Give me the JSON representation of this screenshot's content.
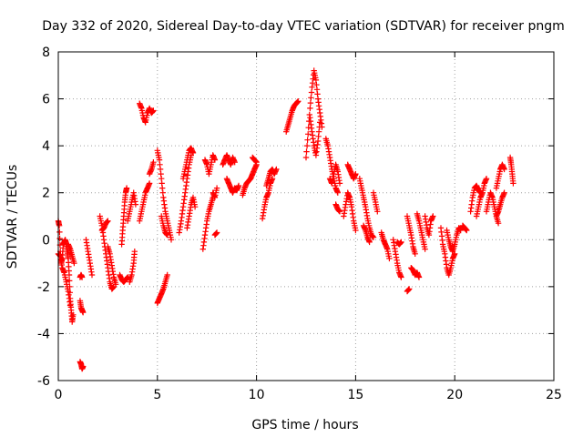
{
  "chart_data": {
    "type": "scatter",
    "title": "Day 332 of 2020, Sidereal Day-to-day VTEC variation (SDTVAR) for receiver pngm",
    "xlabel": "GPS time / hours",
    "ylabel": "SDTVAR / TECUs",
    "xlim": [
      0,
      25
    ],
    "ylim": [
      -6,
      8
    ],
    "xticks": [
      0,
      5,
      10,
      15,
      20,
      25
    ],
    "yticks": [
      -6,
      -4,
      -2,
      0,
      2,
      4,
      6,
      8
    ],
    "grid": true,
    "marker": "+",
    "color": "#ff0000",
    "segments": [
      [
        [
          0.0,
          0.8
        ],
        [
          0.05,
          0.6
        ],
        [
          0.1,
          -0.5
        ],
        [
          0.15,
          -1.0
        ],
        [
          0.2,
          -0.8
        ],
        [
          0.25,
          -0.2
        ],
        [
          0.3,
          -0.1
        ],
        [
          0.35,
          0.0
        ],
        [
          0.4,
          -0.2
        ],
        [
          0.45,
          -0.5
        ],
        [
          0.5,
          -0.8
        ],
        [
          0.55,
          -1.5
        ],
        [
          0.6,
          -2.5
        ],
        [
          0.65,
          -3.0
        ],
        [
          0.7,
          -3.5
        ],
        [
          0.75,
          -3.2
        ]
      ],
      [
        [
          0.0,
          -0.6
        ],
        [
          0.1,
          -0.7
        ],
        [
          0.2,
          -1.2
        ],
        [
          0.3,
          -1.4
        ],
        [
          0.4,
          -1.8
        ],
        [
          0.5,
          -2.2
        ],
        [
          0.6,
          -2.8
        ]
      ],
      [
        [
          0.5,
          -0.2
        ],
        [
          0.6,
          -0.4
        ],
        [
          0.7,
          -0.7
        ],
        [
          0.8,
          -1.0
        ]
      ],
      [
        [
          1.1,
          -1.6
        ],
        [
          1.15,
          -1.5
        ],
        [
          1.2,
          -1.6
        ]
      ],
      [
        [
          1.1,
          -2.6
        ],
        [
          1.15,
          -2.9
        ],
        [
          1.2,
          -3.0
        ],
        [
          1.25,
          -3.1
        ]
      ],
      [
        [
          1.1,
          -5.2
        ],
        [
          1.15,
          -5.3
        ],
        [
          1.2,
          -5.5
        ],
        [
          1.25,
          -5.4
        ]
      ],
      [
        [
          1.4,
          0.0
        ],
        [
          1.5,
          -0.5
        ],
        [
          1.6,
          -1.0
        ],
        [
          1.7,
          -1.5
        ]
      ],
      [
        [
          2.1,
          1.0
        ],
        [
          2.2,
          0.6
        ],
        [
          2.3,
          0.0
        ],
        [
          2.4,
          -0.6
        ],
        [
          2.5,
          -1.2
        ],
        [
          2.6,
          -1.8
        ],
        [
          2.7,
          -2.1
        ],
        [
          2.8,
          -2.0
        ]
      ],
      [
        [
          2.2,
          0.4
        ],
        [
          2.3,
          0.5
        ],
        [
          2.4,
          0.7
        ],
        [
          2.5,
          0.8
        ]
      ],
      [
        [
          2.5,
          -0.3
        ],
        [
          2.6,
          -0.6
        ],
        [
          2.7,
          -1.1
        ],
        [
          2.8,
          -1.6
        ],
        [
          2.9,
          -1.9
        ]
      ],
      [
        [
          3.1,
          -1.5
        ],
        [
          3.2,
          -1.7
        ],
        [
          3.3,
          -1.8
        ],
        [
          3.4,
          -1.7
        ],
        [
          3.5,
          -1.6
        ]
      ],
      [
        [
          3.2,
          -0.2
        ],
        [
          3.25,
          0.4
        ],
        [
          3.3,
          1.0
        ],
        [
          3.35,
          1.6
        ],
        [
          3.4,
          2.0
        ],
        [
          3.45,
          2.2
        ]
      ],
      [
        [
          3.5,
          0.8
        ],
        [
          3.6,
          1.2
        ],
        [
          3.7,
          1.6
        ],
        [
          3.8,
          2.0
        ],
        [
          3.9,
          1.5
        ]
      ],
      [
        [
          3.6,
          -1.8
        ],
        [
          3.7,
          -1.5
        ],
        [
          3.8,
          -1.0
        ],
        [
          3.85,
          -0.5
        ]
      ],
      [
        [
          4.1,
          0.8
        ],
        [
          4.2,
          1.2
        ],
        [
          4.3,
          1.6
        ],
        [
          4.4,
          2.0
        ],
        [
          4.5,
          2.2
        ],
        [
          4.6,
          2.4
        ]
      ],
      [
        [
          4.1,
          5.8
        ],
        [
          4.2,
          5.6
        ],
        [
          4.3,
          5.2
        ],
        [
          4.4,
          5.0
        ],
        [
          4.5,
          5.4
        ],
        [
          4.6,
          5.6
        ],
        [
          4.7,
          5.4
        ],
        [
          4.8,
          5.5
        ]
      ],
      [
        [
          4.6,
          2.8
        ],
        [
          4.7,
          3.0
        ],
        [
          4.8,
          3.3
        ]
      ],
      [
        [
          5.0,
          3.8
        ],
        [
          5.1,
          3.4
        ],
        [
          5.2,
          2.6
        ],
        [
          5.3,
          1.8
        ],
        [
          5.4,
          1.2
        ],
        [
          5.5,
          0.8
        ],
        [
          5.6,
          0.4
        ],
        [
          5.7,
          0.0
        ]
      ],
      [
        [
          5.2,
          1.0
        ],
        [
          5.3,
          0.6
        ],
        [
          5.4,
          0.3
        ],
        [
          5.5,
          0.2
        ]
      ],
      [
        [
          5.0,
          -2.7
        ],
        [
          5.1,
          -2.5
        ],
        [
          5.2,
          -2.3
        ],
        [
          5.3,
          -2.1
        ],
        [
          5.4,
          -1.8
        ],
        [
          5.5,
          -1.5
        ]
      ],
      [
        [
          6.1,
          0.3
        ],
        [
          6.2,
          0.8
        ],
        [
          6.3,
          1.4
        ],
        [
          6.4,
          2.0
        ],
        [
          6.5,
          2.6
        ],
        [
          6.6,
          3.2
        ],
        [
          6.7,
          3.6
        ]
      ],
      [
        [
          6.3,
          2.6
        ],
        [
          6.4,
          3.0
        ],
        [
          6.5,
          3.4
        ],
        [
          6.6,
          3.8
        ],
        [
          6.7,
          3.9
        ],
        [
          6.8,
          3.7
        ]
      ],
      [
        [
          6.5,
          0.5
        ],
        [
          6.6,
          1.0
        ],
        [
          6.7,
          1.5
        ],
        [
          6.8,
          1.8
        ],
        [
          6.9,
          1.4
        ]
      ],
      [
        [
          7.3,
          -0.4
        ],
        [
          7.4,
          0.2
        ],
        [
          7.5,
          0.8
        ],
        [
          7.6,
          1.2
        ],
        [
          7.7,
          1.5
        ],
        [
          7.8,
          1.8
        ]
      ],
      [
        [
          7.4,
          3.4
        ],
        [
          7.5,
          3.2
        ],
        [
          7.6,
          2.8
        ],
        [
          7.7,
          3.2
        ],
        [
          7.8,
          3.6
        ],
        [
          7.9,
          3.4
        ]
      ],
      [
        [
          7.8,
          2.0
        ],
        [
          7.9,
          1.8
        ],
        [
          8.0,
          2.2
        ]
      ],
      [
        [
          7.9,
          0.2
        ],
        [
          8.0,
          0.3
        ]
      ],
      [
        [
          8.3,
          3.2
        ],
        [
          8.4,
          3.4
        ],
        [
          8.5,
          3.6
        ],
        [
          8.6,
          3.4
        ],
        [
          8.7,
          3.2
        ],
        [
          8.8,
          3.5
        ],
        [
          8.9,
          3.3
        ]
      ],
      [
        [
          8.5,
          2.6
        ],
        [
          8.6,
          2.4
        ],
        [
          8.7,
          2.2
        ],
        [
          8.8,
          2.0
        ],
        [
          8.9,
          2.2
        ],
        [
          9.0,
          2.1
        ],
        [
          9.1,
          2.3
        ]
      ],
      [
        [
          9.3,
          1.9
        ],
        [
          9.4,
          2.2
        ],
        [
          9.5,
          2.4
        ],
        [
          9.6,
          2.5
        ],
        [
          9.7,
          2.6
        ],
        [
          9.8,
          2.8
        ],
        [
          9.9,
          3.0
        ],
        [
          10.0,
          3.2
        ]
      ],
      [
        [
          9.8,
          3.5
        ],
        [
          9.9,
          3.4
        ],
        [
          10.0,
          3.3
        ]
      ],
      [
        [
          10.3,
          0.9
        ],
        [
          10.4,
          1.4
        ],
        [
          10.5,
          1.8
        ],
        [
          10.6,
          2.0
        ],
        [
          10.7,
          2.4
        ],
        [
          10.8,
          2.6
        ]
      ],
      [
        [
          10.5,
          2.3
        ],
        [
          10.6,
          2.6
        ],
        [
          10.7,
          2.9
        ],
        [
          10.8,
          3.0
        ],
        [
          10.9,
          2.8
        ],
        [
          11.0,
          3.0
        ]
      ],
      [
        [
          11.5,
          4.6
        ],
        [
          11.6,
          4.9
        ],
        [
          11.7,
          5.2
        ],
        [
          11.8,
          5.5
        ],
        [
          11.9,
          5.7
        ],
        [
          12.0,
          5.8
        ],
        [
          12.1,
          5.9
        ]
      ],
      [
        [
          12.5,
          3.5
        ],
        [
          12.6,
          4.5
        ],
        [
          12.7,
          5.6
        ],
        [
          12.8,
          6.5
        ],
        [
          12.9,
          7.2
        ],
        [
          13.0,
          6.8
        ],
        [
          13.1,
          6.0
        ],
        [
          13.2,
          5.4
        ],
        [
          13.3,
          4.8
        ]
      ],
      [
        [
          12.7,
          5.2
        ],
        [
          12.8,
          4.6
        ],
        [
          12.9,
          4.0
        ],
        [
          13.0,
          3.6
        ],
        [
          13.1,
          4.2
        ],
        [
          13.2,
          5.0
        ]
      ],
      [
        [
          13.5,
          4.3
        ],
        [
          13.6,
          4.0
        ],
        [
          13.7,
          3.5
        ],
        [
          13.8,
          3.0
        ],
        [
          13.9,
          2.6
        ],
        [
          14.0,
          2.2
        ],
        [
          14.1,
          2.0
        ]
      ],
      [
        [
          13.7,
          2.6
        ],
        [
          13.8,
          2.4
        ],
        [
          13.9,
          2.8
        ],
        [
          14.0,
          3.2
        ],
        [
          14.1,
          2.9
        ],
        [
          14.2,
          2.4
        ]
      ],
      [
        [
          14.0,
          1.5
        ],
        [
          14.1,
          1.3
        ],
        [
          14.2,
          1.2
        ]
      ],
      [
        [
          14.4,
          1.0
        ],
        [
          14.5,
          1.5
        ],
        [
          14.6,
          2.0
        ],
        [
          14.7,
          1.8
        ],
        [
          14.8,
          1.4
        ],
        [
          14.9,
          0.8
        ],
        [
          15.0,
          0.4
        ]
      ],
      [
        [
          14.6,
          3.2
        ],
        [
          14.7,
          3.0
        ],
        [
          14.8,
          2.8
        ],
        [
          14.9,
          2.6
        ],
        [
          15.0,
          2.8
        ]
      ],
      [
        [
          15.2,
          2.6
        ],
        [
          15.3,
          2.2
        ],
        [
          15.4,
          1.8
        ],
        [
          15.5,
          1.4
        ],
        [
          15.6,
          0.9
        ],
        [
          15.7,
          0.5
        ],
        [
          15.8,
          0.2
        ],
        [
          15.9,
          0.1
        ]
      ],
      [
        [
          15.4,
          0.6
        ],
        [
          15.5,
          0.4
        ],
        [
          15.6,
          0.1
        ],
        [
          15.7,
          -0.1
        ]
      ],
      [
        [
          15.9,
          2.0
        ],
        [
          16.0,
          1.6
        ],
        [
          16.1,
          1.2
        ]
      ],
      [
        [
          16.3,
          0.3
        ],
        [
          16.4,
          0.0
        ],
        [
          16.5,
          -0.2
        ],
        [
          16.6,
          -0.4
        ],
        [
          16.7,
          -0.8
        ]
      ],
      [
        [
          16.9,
          0.0
        ],
        [
          17.0,
          -0.5
        ],
        [
          17.1,
          -1.0
        ],
        [
          17.2,
          -1.4
        ],
        [
          17.3,
          -1.6
        ]
      ],
      [
        [
          17.1,
          -0.1
        ],
        [
          17.2,
          -0.2
        ],
        [
          17.3,
          -0.1
        ]
      ],
      [
        [
          17.6,
          1.0
        ],
        [
          17.7,
          0.6
        ],
        [
          17.8,
          0.2
        ],
        [
          17.9,
          -0.3
        ],
        [
          18.0,
          -0.6
        ]
      ],
      [
        [
          17.8,
          -1.2
        ],
        [
          17.9,
          -1.3
        ],
        [
          18.0,
          -1.5
        ],
        [
          18.1,
          -1.4
        ],
        [
          18.2,
          -1.6
        ]
      ],
      [
        [
          17.6,
          -2.2
        ],
        [
          17.7,
          -2.1
        ]
      ],
      [
        [
          18.1,
          1.1
        ],
        [
          18.2,
          0.8
        ],
        [
          18.3,
          0.4
        ],
        [
          18.4,
          0.0
        ],
        [
          18.5,
          -0.4
        ]
      ],
      [
        [
          18.5,
          1.0
        ],
        [
          18.6,
          0.5
        ],
        [
          18.7,
          0.2
        ],
        [
          18.8,
          0.8
        ],
        [
          18.9,
          1.0
        ]
      ],
      [
        [
          19.3,
          0.5
        ],
        [
          19.4,
          -0.2
        ],
        [
          19.5,
          -0.6
        ],
        [
          19.6,
          -1.2
        ],
        [
          19.7,
          -1.5
        ],
        [
          19.8,
          -1.2
        ],
        [
          19.9,
          -0.8
        ],
        [
          20.0,
          -0.6
        ]
      ],
      [
        [
          19.6,
          0.4
        ],
        [
          19.7,
          0.0
        ],
        [
          19.8,
          -0.3
        ],
        [
          19.9,
          -0.5
        ],
        [
          20.0,
          -0.2
        ],
        [
          20.1,
          0.2
        ],
        [
          20.2,
          0.5
        ],
        [
          20.3,
          0.4
        ]
      ],
      [
        [
          20.4,
          0.6
        ],
        [
          20.5,
          0.5
        ],
        [
          20.6,
          0.4
        ]
      ],
      [
        [
          20.8,
          1.2
        ],
        [
          20.9,
          1.8
        ],
        [
          21.0,
          2.2
        ],
        [
          21.1,
          2.3
        ],
        [
          21.2,
          2.1
        ],
        [
          21.3,
          2.0
        ]
      ],
      [
        [
          21.1,
          1.0
        ],
        [
          21.2,
          1.4
        ],
        [
          21.3,
          1.8
        ],
        [
          21.4,
          2.0
        ],
        [
          21.5,
          2.4
        ],
        [
          21.6,
          2.6
        ]
      ],
      [
        [
          21.6,
          1.2
        ],
        [
          21.7,
          1.6
        ],
        [
          21.8,
          2.0
        ],
        [
          21.9,
          1.8
        ],
        [
          22.0,
          1.4
        ],
        [
          22.1,
          1.0
        ],
        [
          22.2,
          0.7
        ]
      ],
      [
        [
          22.1,
          2.2
        ],
        [
          22.2,
          2.6
        ],
        [
          22.3,
          3.0
        ],
        [
          22.4,
          3.2
        ],
        [
          22.5,
          3.0
        ]
      ],
      [
        [
          22.1,
          1.0
        ],
        [
          22.2,
          1.2
        ],
        [
          22.3,
          1.5
        ],
        [
          22.4,
          1.8
        ],
        [
          22.5,
          2.0
        ]
      ],
      [
        [
          22.8,
          3.5
        ],
        [
          22.85,
          3.2
        ],
        [
          22.9,
          2.8
        ],
        [
          22.95,
          2.4
        ]
      ]
    ]
  }
}
